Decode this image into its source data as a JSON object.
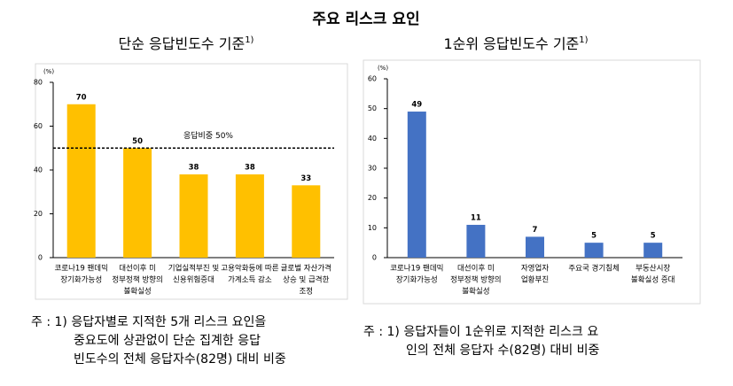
{
  "title": "주요 리스크 요인",
  "chart_data": [
    {
      "type": "bar",
      "title": "단순 응답빈도수 기준",
      "title_superscript": "1)",
      "y_label": "(%)",
      "categories": [
        [
          "코로나19 팬데믹",
          "장기화가능성"
        ],
        [
          "대선이후 미",
          "정부정책 방향의",
          "불확실성"
        ],
        [
          "기업실적부진 및",
          "신용위험증대"
        ],
        [
          "고용악화등에 따른",
          "가계소득 감소"
        ],
        [
          "글로벌 자산가격",
          "상승 및 급격한",
          "조정"
        ]
      ],
      "values": [
        70,
        50,
        38,
        38,
        33
      ],
      "color": "#FFC000",
      "ylim": [
        0,
        80
      ],
      "yticks": [
        0,
        20,
        40,
        60,
        80
      ],
      "reference_line": {
        "value": 50,
        "label": "응답비중 50%"
      },
      "note": [
        "주 : 1) 응답자별로 지적한 5개 리스크 요인을",
        "중요도에 상관없이 단순 집계한 응답",
        "빈도수의 전체 응답자수(82명) 대비 비중"
      ]
    },
    {
      "type": "bar",
      "title": "1순위 응답빈도수 기준",
      "title_superscript": "1)",
      "y_label": "(%)",
      "categories": [
        [
          "코로나19 팬데믹",
          "장기화가능성"
        ],
        [
          "대선이후 미",
          "정부정책 방향의",
          "불확실성"
        ],
        [
          "자영업자",
          "업황부진"
        ],
        [
          "주요국 경기침체"
        ],
        [
          "부동산시장",
          "불확실성 증대"
        ]
      ],
      "values": [
        49,
        11,
        7,
        5,
        5
      ],
      "color": "#4472C4",
      "ylim": [
        0,
        60
      ],
      "yticks": [
        0,
        10,
        20,
        30,
        40,
        50,
        60
      ],
      "note": [
        "주 : 1) 응답자들이 1순위로 지적한 리스크 요",
        "인의 전체 응답자 수(82명) 대비 비중"
      ]
    }
  ]
}
